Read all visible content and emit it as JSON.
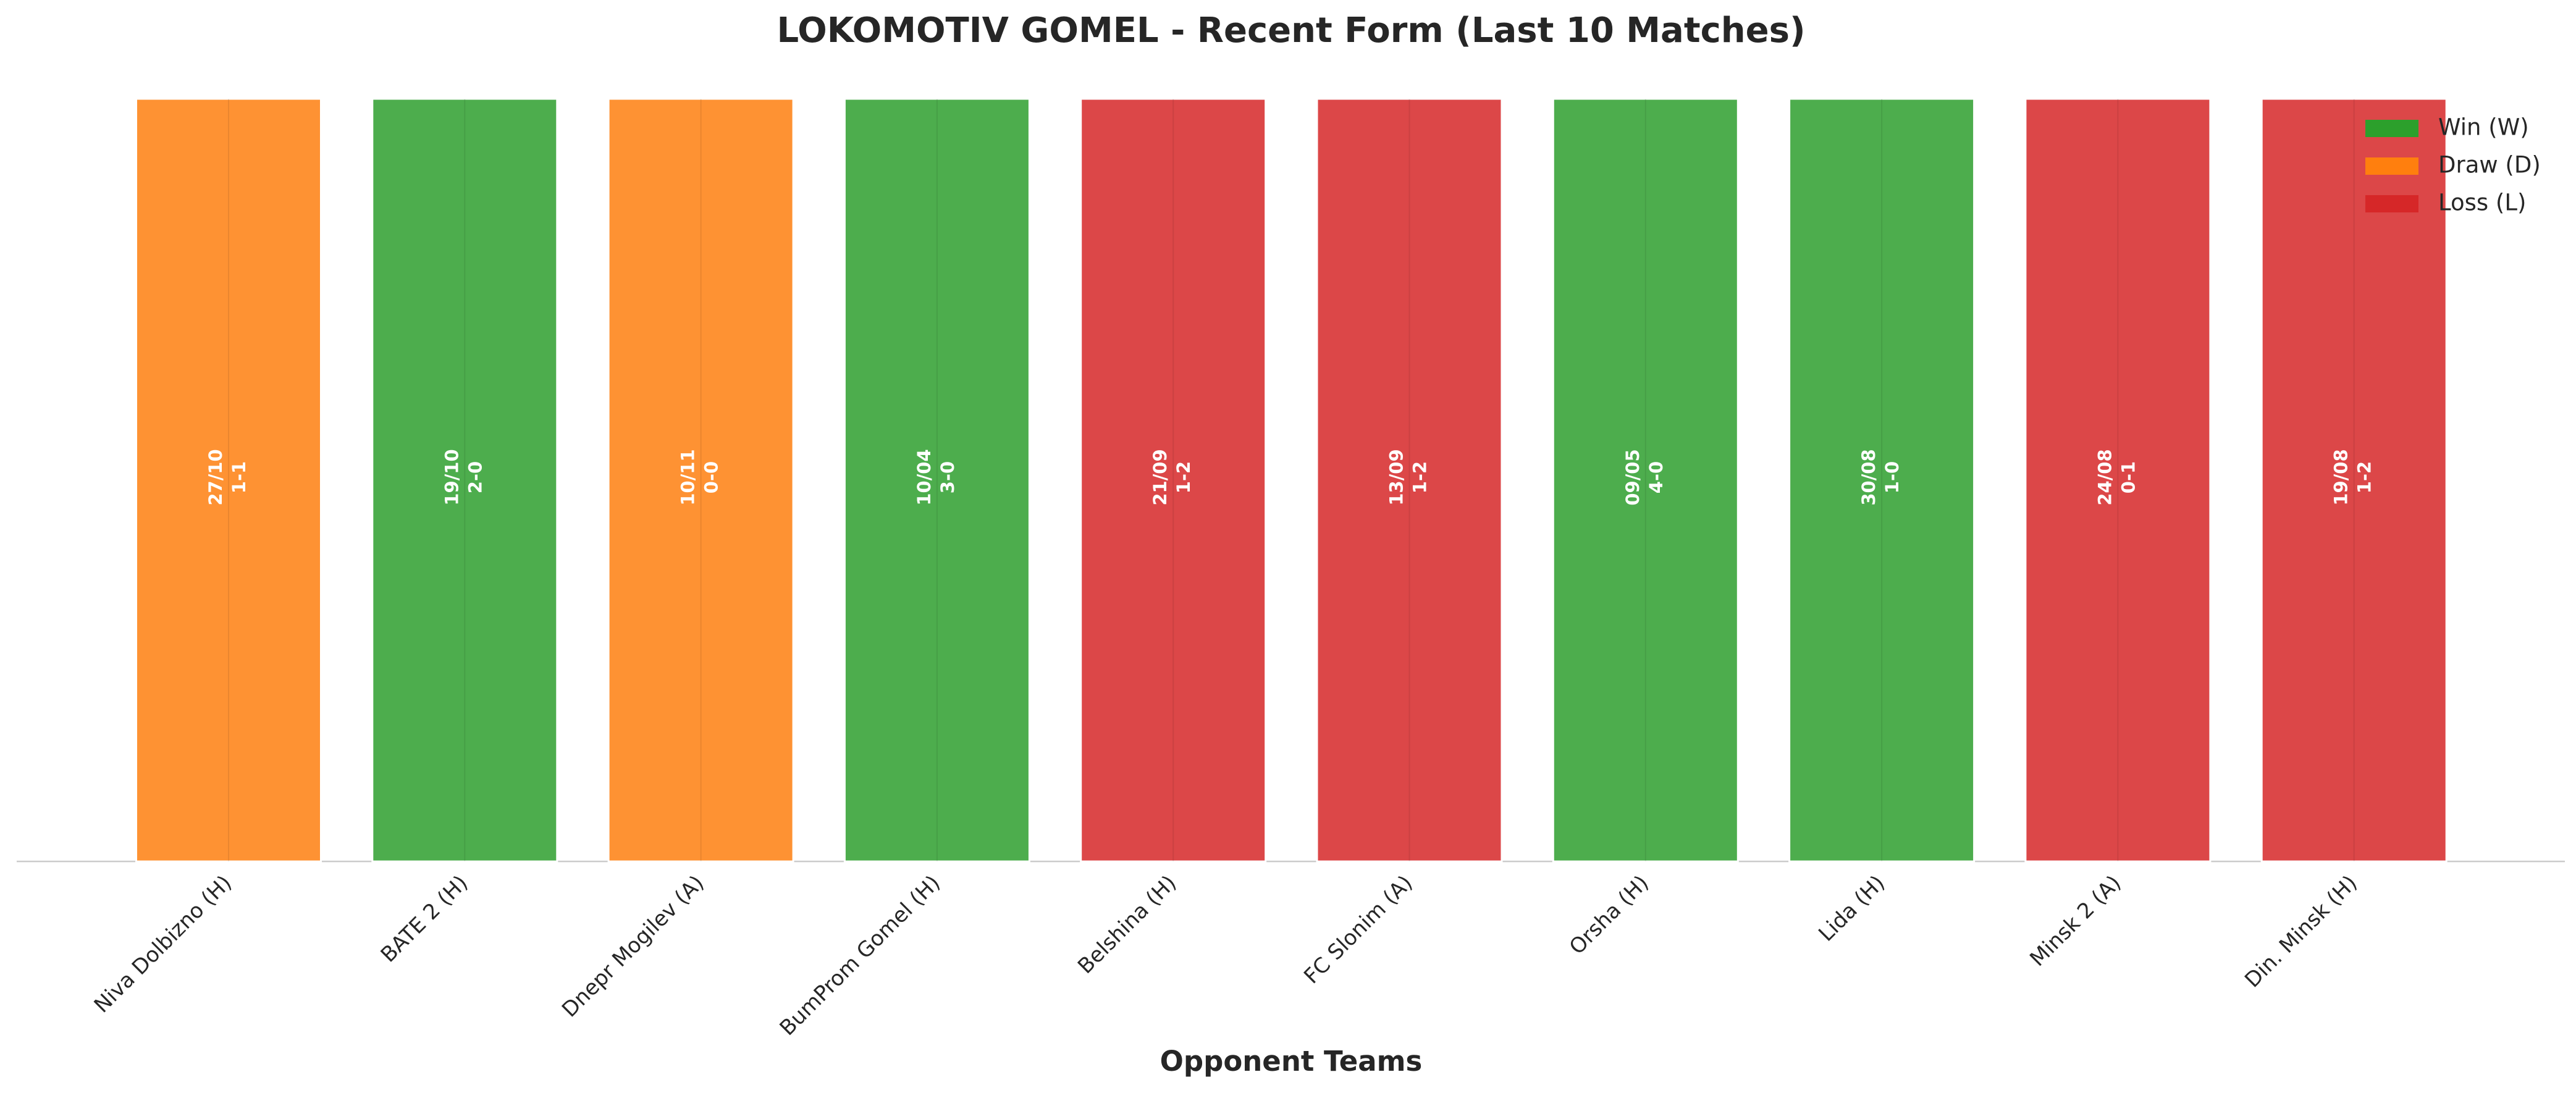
{
  "chart_data": {
    "type": "bar",
    "title": "LOKOMOTIV GOMEL - Recent Form (Last 10 Matches)",
    "x_label": "Opponent Teams",
    "categories": [
      "Niva Dolbizno (H)",
      "BATE 2 (H)",
      "Dnepr Mogilev (A)",
      "BumProm Gomel (H)",
      "Belshina (H)",
      "FC Slonim (A)",
      "Orsha (H)",
      "Lida (H)",
      "Minsk 2 (A)",
      "Din. Minsk (H)"
    ],
    "values": [
      1,
      1,
      1,
      1,
      1,
      1,
      1,
      1,
      1,
      1
    ],
    "dates": [
      "27/10",
      "19/10",
      "10/11",
      "10/04",
      "21/09",
      "13/09",
      "09/05",
      "30/08",
      "24/08",
      "19/08"
    ],
    "scores": [
      "1-1",
      "2-0",
      "0-0",
      "3-0",
      "1-2",
      "1-2",
      "4-0",
      "1-0",
      "0-1",
      "1-2"
    ],
    "colors": [
      "#fe9233",
      "#4dad4d",
      "#fe9233",
      "#4dad4d",
      "#dc4748",
      "#dc4748",
      "#4dad4d",
      "#4dad4d",
      "#dc4748",
      "#dc4748"
    ],
    "ylim": [
      0,
      1
    ],
    "grid": true,
    "legend_position": "upper right",
    "legend": [
      {
        "name": "Win (W)",
        "color": "#2ca02c"
      },
      {
        "name": "Draw (D)",
        "color": "#ff7f0e"
      },
      {
        "name": "Loss (L)",
        "color": "#d62728"
      }
    ]
  }
}
